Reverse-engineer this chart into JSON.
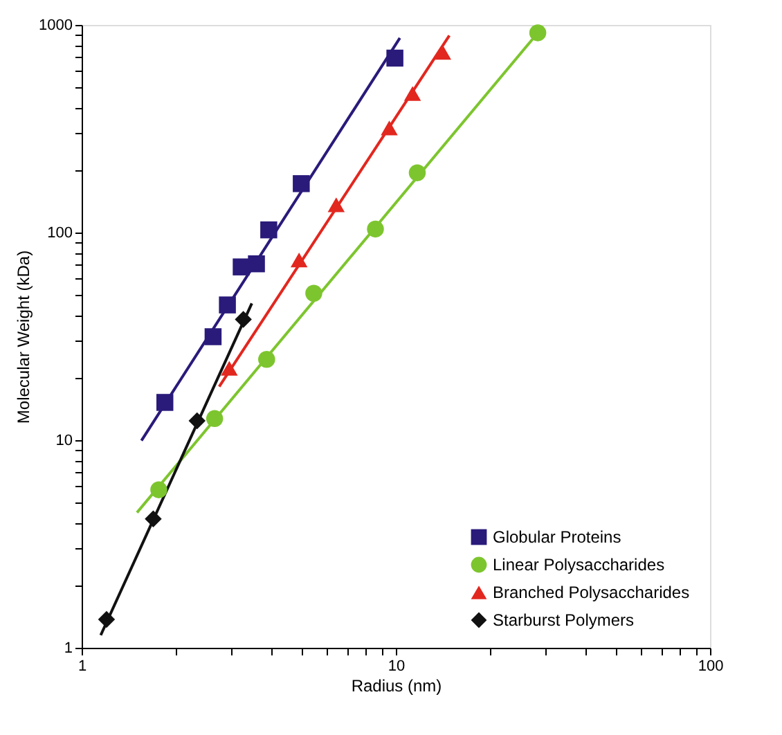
{
  "chart_data": {
    "type": "scatter",
    "xlabel": "Radius (nm)",
    "ylabel": "Molecular Weight (kDa)",
    "log": "xy",
    "grid": false,
    "legend": "bottom right",
    "xlim": [
      1,
      100
    ],
    "ylim": [
      1,
      1000
    ],
    "xticks": [
      1,
      {
        "value": 2,
        "label": null
      },
      {
        "value": 3,
        "label": null
      },
      {
        "value": 4,
        "label": null
      },
      {
        "value": 5,
        "label": null
      },
      {
        "value": 6,
        "label": null
      },
      {
        "value": 7,
        "label": null
      },
      {
        "value": 8,
        "label": null
      },
      {
        "value": 9,
        "label": null
      },
      10,
      {
        "value": 20,
        "label": null
      },
      {
        "value": 30,
        "label": null
      },
      {
        "value": 40,
        "label": null
      },
      {
        "value": 50,
        "label": null
      },
      {
        "value": 60,
        "label": null
      },
      {
        "value": 70,
        "label": null
      },
      {
        "value": 80,
        "label": null
      },
      {
        "value": 90,
        "label": null
      },
      100
    ],
    "yticks": [
      1,
      {
        "value": 2,
        "label": null
      },
      {
        "value": 3,
        "label": null
      },
      {
        "value": 4,
        "label": null
      },
      {
        "value": 5,
        "label": null
      },
      {
        "value": 6,
        "label": null
      },
      {
        "value": 7,
        "label": null
      },
      {
        "value": 8,
        "label": null
      },
      {
        "value": 9,
        "label": null
      },
      10,
      {
        "value": 20,
        "label": null
      },
      {
        "value": 30,
        "label": null
      },
      {
        "value": 40,
        "label": null
      },
      {
        "value": 50,
        "label": null
      },
      {
        "value": 60,
        "label": null
      },
      {
        "value": 70,
        "label": null
      },
      {
        "value": 80,
        "label": null
      },
      {
        "value": 90,
        "label": null
      },
      100,
      {
        "value": 200,
        "label": null
      },
      {
        "value": 300,
        "label": null
      },
      {
        "value": 400,
        "label": null
      },
      {
        "value": 500,
        "label": null
      },
      {
        "value": 600,
        "label": null
      },
      {
        "value": 700,
        "label": null
      },
      {
        "value": 800,
        "label": null
      },
      {
        "value": 900,
        "label": null
      },
      1000
    ],
    "series": [
      {
        "type": "line",
        "marker": "none",
        "line_style": "solid",
        "color": "#2a1a7a",
        "x": [
          1.55,
          10.3
        ],
        "values": [
          9.95,
          865
        ]
      },
      {
        "type": "line",
        "marker": "none",
        "line_style": "solid",
        "color": "#7dc52e",
        "x": [
          1.5,
          28.3
        ],
        "values": [
          4.48,
          916
        ]
      },
      {
        "type": "line",
        "marker": "none",
        "line_style": "solid",
        "color": "#e2271f",
        "x": [
          2.74,
          14.8
        ],
        "values": [
          18.1,
          889
        ]
      },
      {
        "type": "line",
        "marker": "none",
        "line_style": "solid",
        "color": "#111111",
        "x": [
          1.15,
          3.48
        ],
        "values": [
          1.15,
          45.6
        ]
      },
      {
        "name": "Globular Proteins",
        "marker": "square",
        "color": "#2a1a7a",
        "x": [
          1.84,
          2.62,
          2.91,
          3.22,
          3.6,
          3.94,
          5.0,
          9.93
        ],
        "values": [
          15.2,
          31.5,
          44.8,
          68.3,
          70.7,
          103,
          172,
          692
        ]
      },
      {
        "name": "Linear Polysaccharides",
        "marker": "circle",
        "color": "#7dc52e",
        "x": [
          1.76,
          2.65,
          3.88,
          5.48,
          8.61,
          11.7,
          28.3
        ],
        "values": [
          5.77,
          12.7,
          24.5,
          51,
          104,
          194,
          916
        ]
      },
      {
        "name": "Branched Polysaccharides",
        "marker": "triangle",
        "color": "#e2271f",
        "x": [
          2.95,
          4.92,
          6.46,
          9.53,
          11.3,
          14.1
        ],
        "values": [
          22.2,
          73.8,
          136,
          319,
          467,
          738
        ]
      },
      {
        "name": "Starburst Polymers",
        "marker": "diamond",
        "color": "#111111",
        "x": [
          1.2,
          1.69,
          2.33,
          3.27
        ],
        "values": [
          1.37,
          4.18,
          12.4,
          38.2
        ]
      }
    ]
  }
}
